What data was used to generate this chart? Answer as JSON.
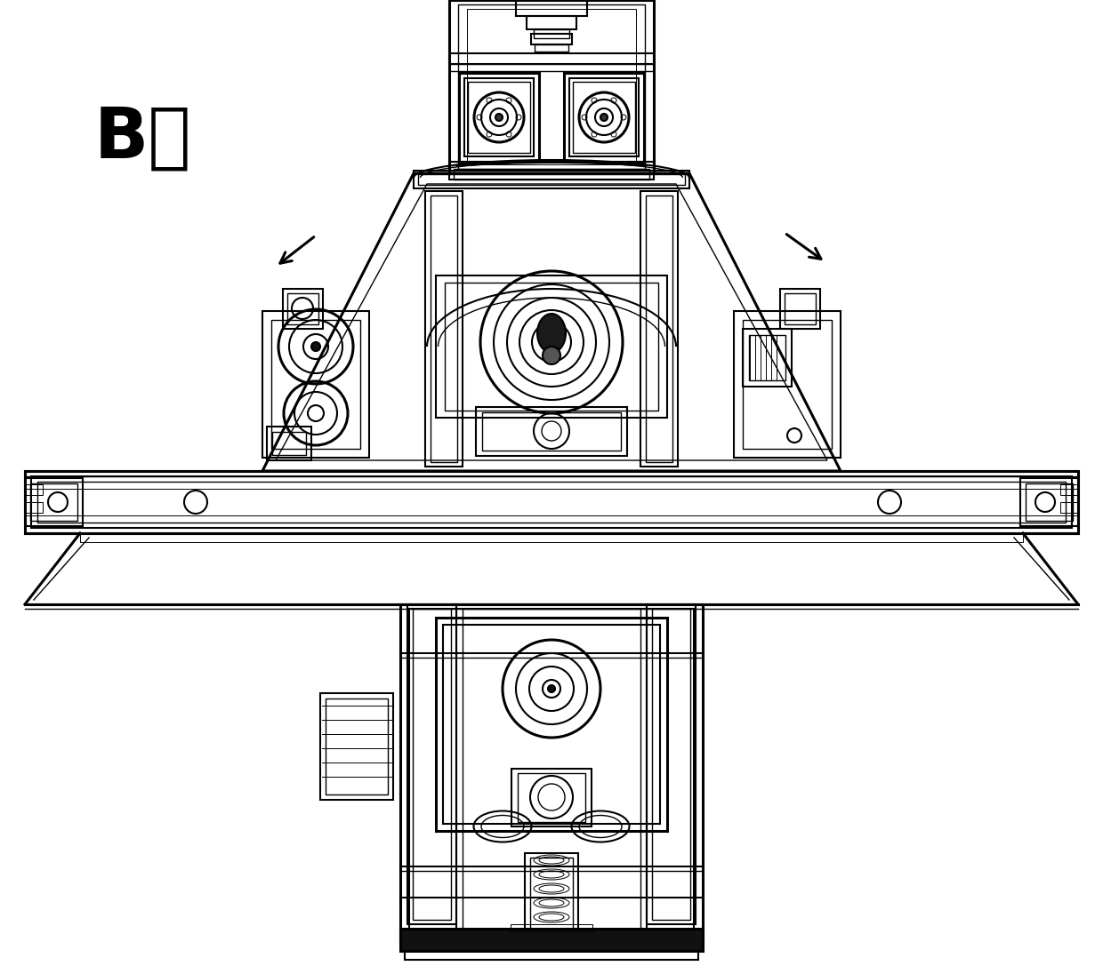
{
  "label_text": "B轴",
  "label_fontsize": 58,
  "bg_color": "#ffffff",
  "line_color": "#000000",
  "lw_heavy": 2.2,
  "lw_medium": 1.5,
  "lw_light": 1.0,
  "lw_thin": 0.7,
  "fig_width": 12.4,
  "fig_height": 10.87
}
